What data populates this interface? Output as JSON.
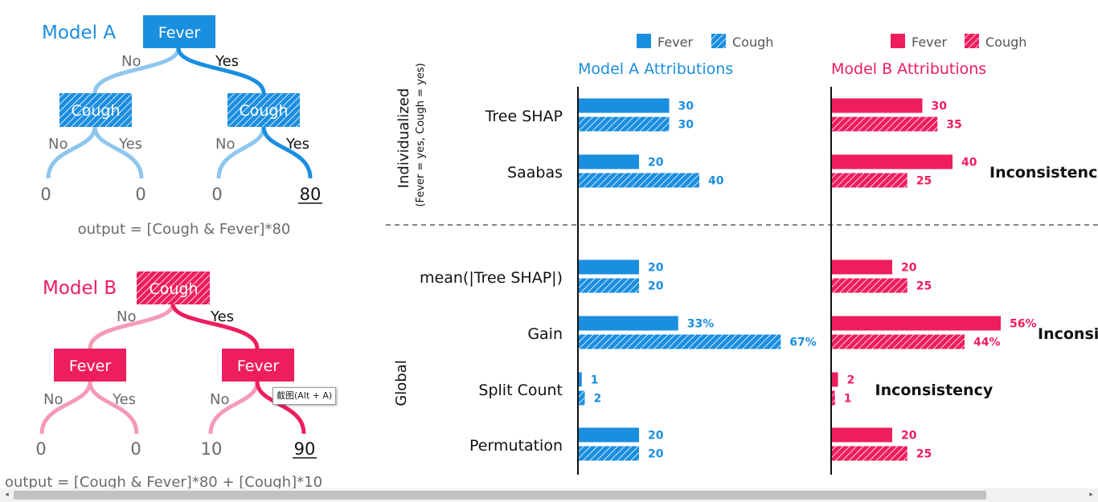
{
  "colors": {
    "model_a": "#1a8edf",
    "model_b": "#ee1d5e",
    "model_a_light": "#8ec6ee",
    "model_b_light": "#f59ab6",
    "text": "#111111",
    "muted": "#6a6a6a"
  },
  "model_a": {
    "title": "Model A",
    "root": "Fever",
    "left_node": "Cough",
    "right_node": "Cough",
    "root_no": "No",
    "root_yes": "Yes",
    "left_no": "No",
    "left_yes": "Yes",
    "right_no": "No",
    "right_yes": "Yes",
    "leaves": [
      "0",
      "0",
      "0",
      "80"
    ],
    "formula": "output = [Cough & Fever]*80"
  },
  "model_b": {
    "title": "Model B",
    "root": "Cough",
    "left_node": "Fever",
    "right_node": "Fever",
    "root_no": "No",
    "root_yes": "Yes",
    "left_no": "No",
    "left_yes": "Yes",
    "right_no": "No",
    "right_yes": "Yes",
    "leaves": [
      "0",
      "0",
      "10",
      "90"
    ],
    "formula": "output = [Cough & Fever]*80 + [Cough]*10"
  },
  "legend": {
    "a": {
      "fever": "Fever",
      "cough": "Cough"
    },
    "b": {
      "fever": "Fever",
      "cough": "Cough"
    }
  },
  "headers": {
    "a": "Model A Attributions",
    "b": "Model B Attributions"
  },
  "sections": {
    "individualized": "Individualized",
    "individualized_sub": "(Fever = yes, Cough = yes)",
    "global": "Global"
  },
  "tooltip": "截图(Alt + A)",
  "chart_data": {
    "type": "bar",
    "orientation": "horizontal",
    "categories": [
      "Tree SHAP",
      "Saabas",
      "mean(|Tree SHAP|)",
      "Gain",
      "Split Count",
      "Permutation"
    ],
    "panels": [
      {
        "name": "Model A Attributions",
        "series": [
          {
            "name": "Fever",
            "values": [
              30,
              20,
              20,
              33,
              1,
              20
            ],
            "labels": [
              "30",
              "20",
              "20",
              "33%",
              "1",
              "20"
            ]
          },
          {
            "name": "Cough",
            "values": [
              30,
              40,
              20,
              67,
              2,
              20
            ],
            "labels": [
              "30",
              "40",
              "20",
              "67%",
              "2",
              "20"
            ]
          }
        ]
      },
      {
        "name": "Model B Attributions",
        "series": [
          {
            "name": "Fever",
            "values": [
              30,
              40,
              20,
              56,
              2,
              20
            ],
            "labels": [
              "30",
              "40",
              "20",
              "56%",
              "2",
              "20"
            ]
          },
          {
            "name": "Cough",
            "values": [
              35,
              25,
              25,
              44,
              1,
              25
            ],
            "labels": [
              "35",
              "25",
              "25",
              "44%",
              "1",
              "25"
            ]
          }
        ],
        "annotations": [
          {
            "row": "Saabas",
            "text": "Inconsistency"
          },
          {
            "row": "Gain",
            "text": "Inconsistency"
          },
          {
            "row": "Split Count",
            "text": "Inconsistency"
          }
        ]
      }
    ],
    "xlim": [
      0,
      70
    ]
  }
}
